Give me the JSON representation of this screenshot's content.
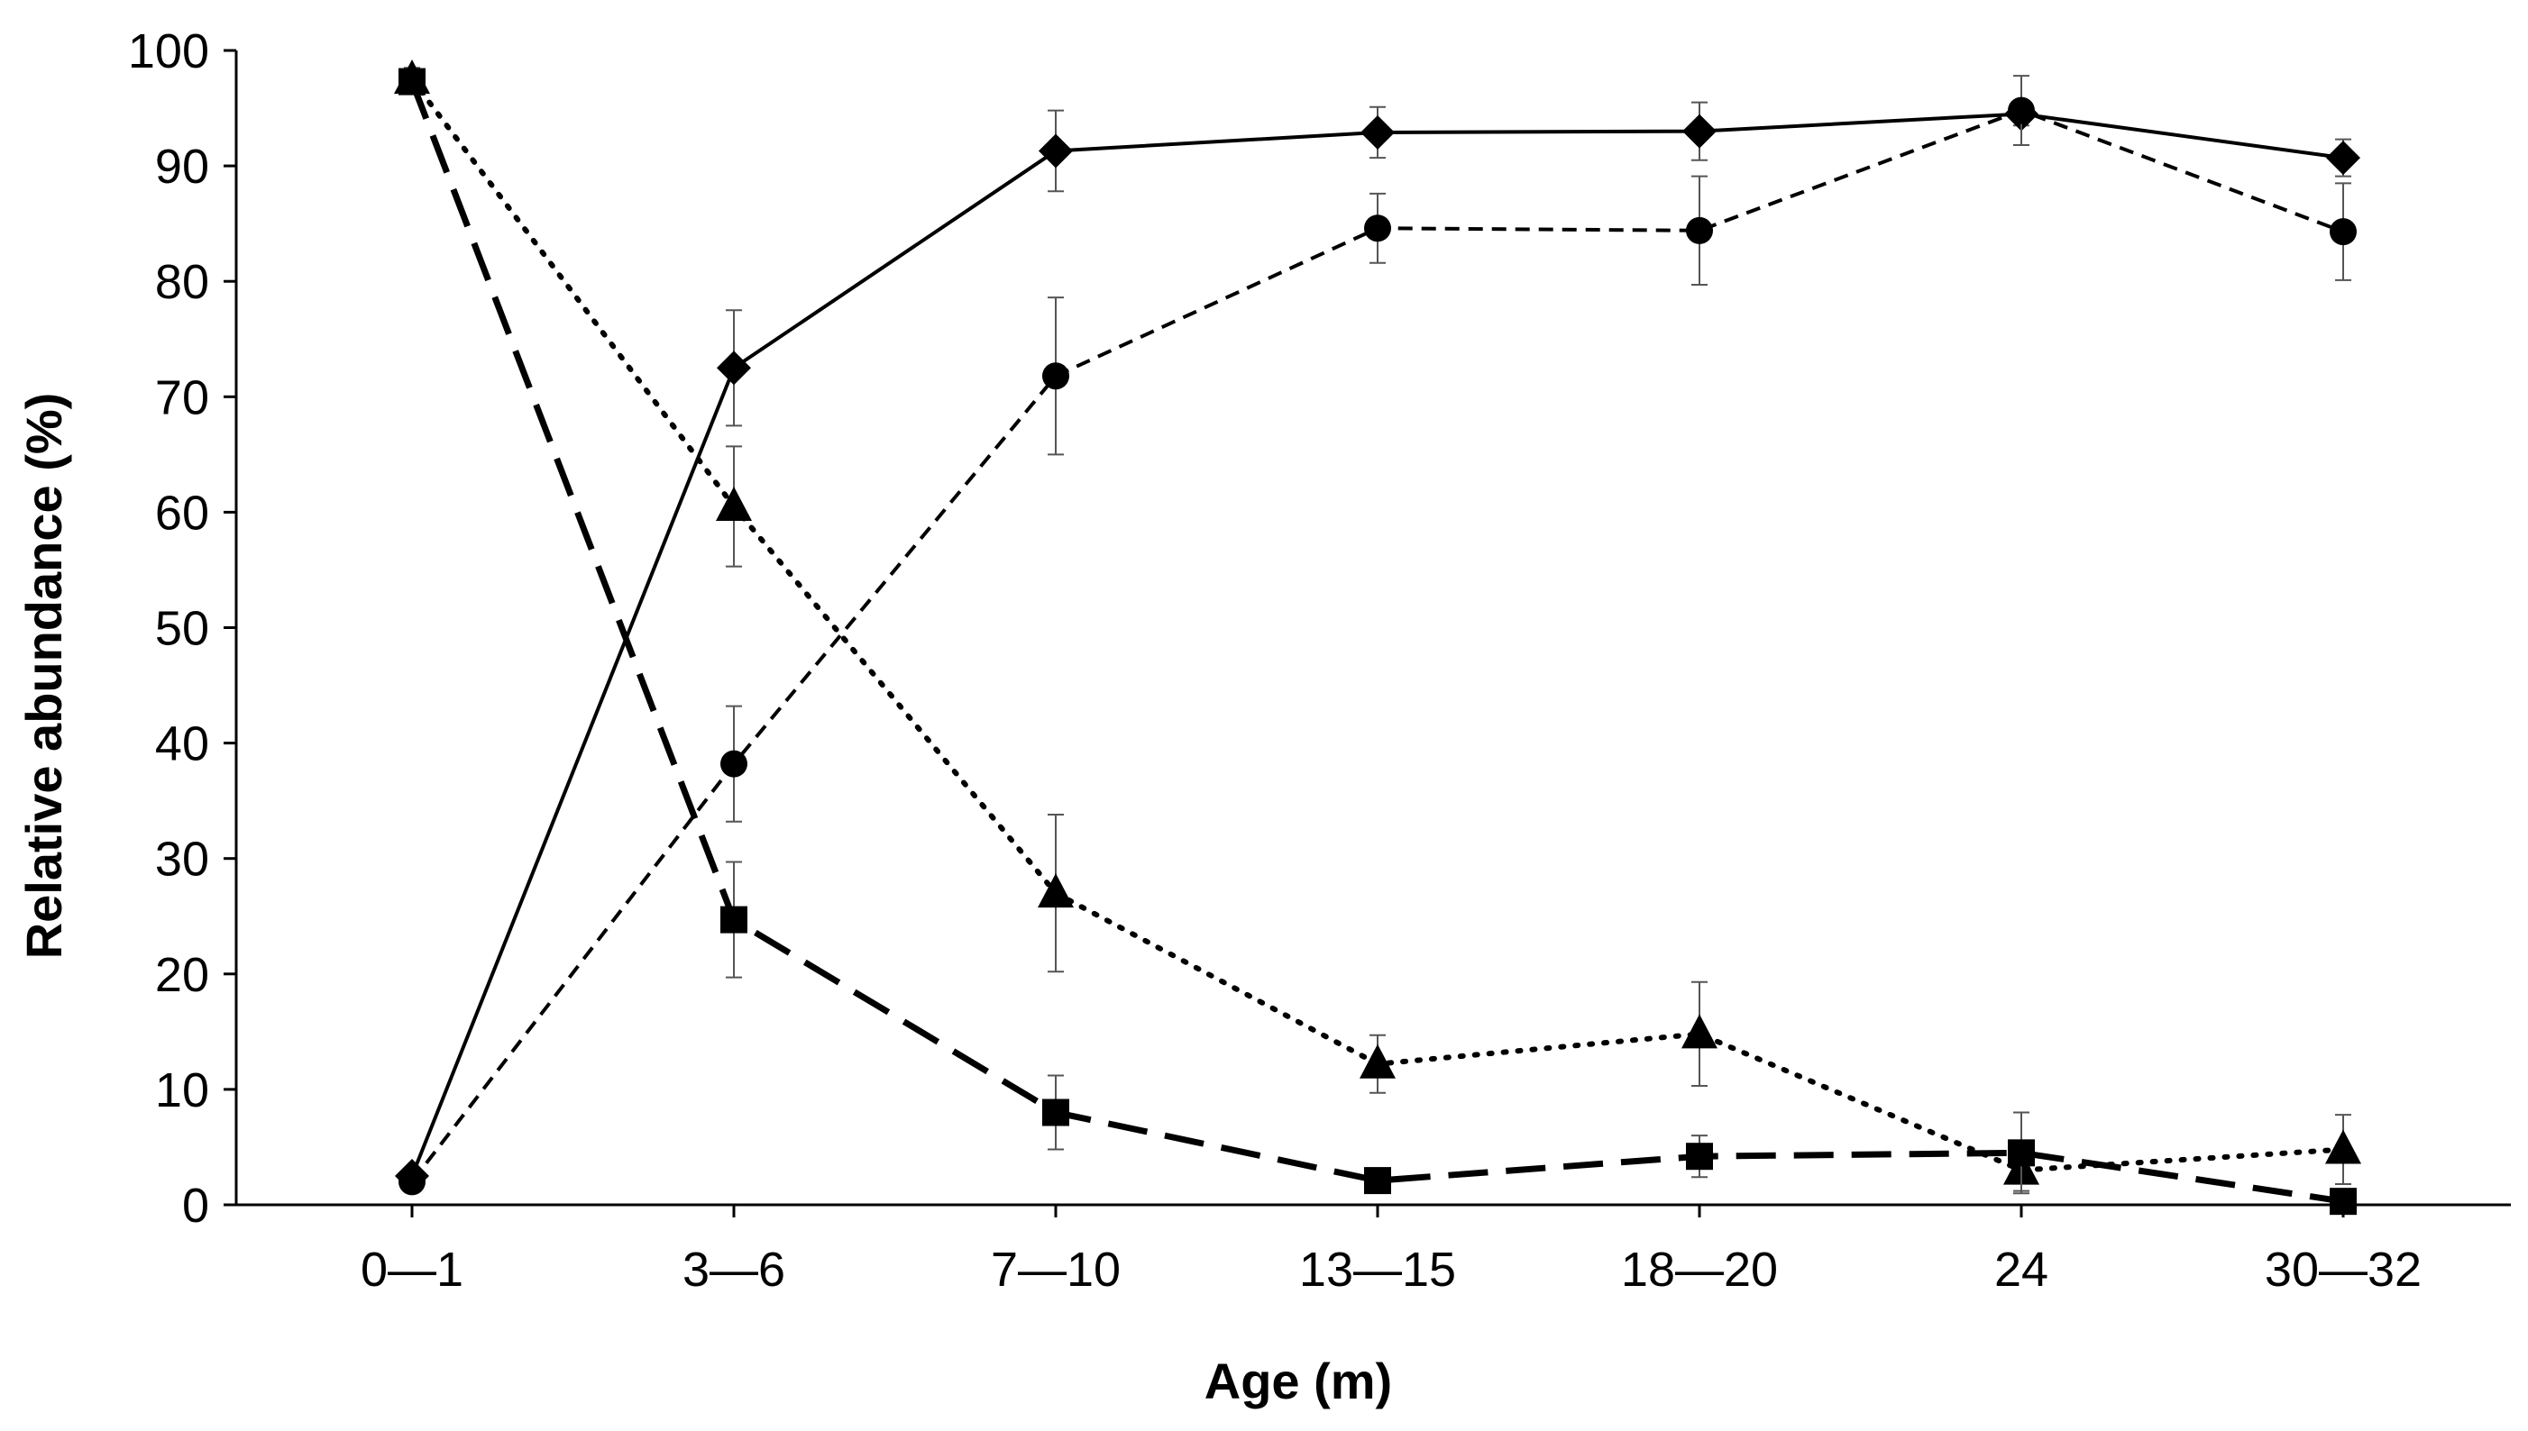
{
  "chart_data": {
    "type": "line",
    "title": "",
    "xlabel": "Age (m)",
    "ylabel": "Relative abundance (%)",
    "categories": [
      "0—1",
      "3—6",
      "7—10",
      "13—15",
      "18—20",
      "24",
      "30—32"
    ],
    "ylim": [
      0,
      100
    ],
    "yticks": [
      "0",
      "10",
      "20",
      "30",
      "40",
      "50",
      "60",
      "70",
      "80",
      "90",
      "100"
    ],
    "grid": false,
    "legend": "none",
    "series": [
      {
        "name": "diamond-solid",
        "marker": "diamond",
        "line": "solid",
        "values": [
          2.5,
          72.5,
          91.3,
          92.9,
          93.0,
          94.5,
          90.7
        ],
        "errors": [
          0,
          5.0,
          3.5,
          2.2,
          2.5,
          1.0,
          1.6
        ]
      },
      {
        "name": "circle-short-dash",
        "marker": "circle",
        "line": "short-dash",
        "values": [
          2.0,
          38.2,
          71.8,
          84.6,
          84.4,
          94.8,
          84.3
        ],
        "errors": [
          0,
          5.0,
          6.8,
          3.0,
          4.7,
          3.0,
          4.2
        ]
      },
      {
        "name": "triangle-dotted",
        "marker": "triangle",
        "line": "dotted",
        "values": [
          97.5,
          60.5,
          27.0,
          12.2,
          14.8,
          3.0,
          4.8
        ],
        "errors": [
          1.0,
          5.2,
          6.8,
          2.5,
          4.5,
          1.8,
          3.0
        ]
      },
      {
        "name": "square-long-dash",
        "marker": "square",
        "line": "long-dash",
        "values": [
          97.3,
          24.7,
          8.0,
          2.1,
          4.2,
          4.5,
          0.3
        ],
        "errors": [
          0.8,
          5.0,
          3.2,
          0.5,
          1.8,
          3.5,
          0.4
        ]
      }
    ]
  }
}
